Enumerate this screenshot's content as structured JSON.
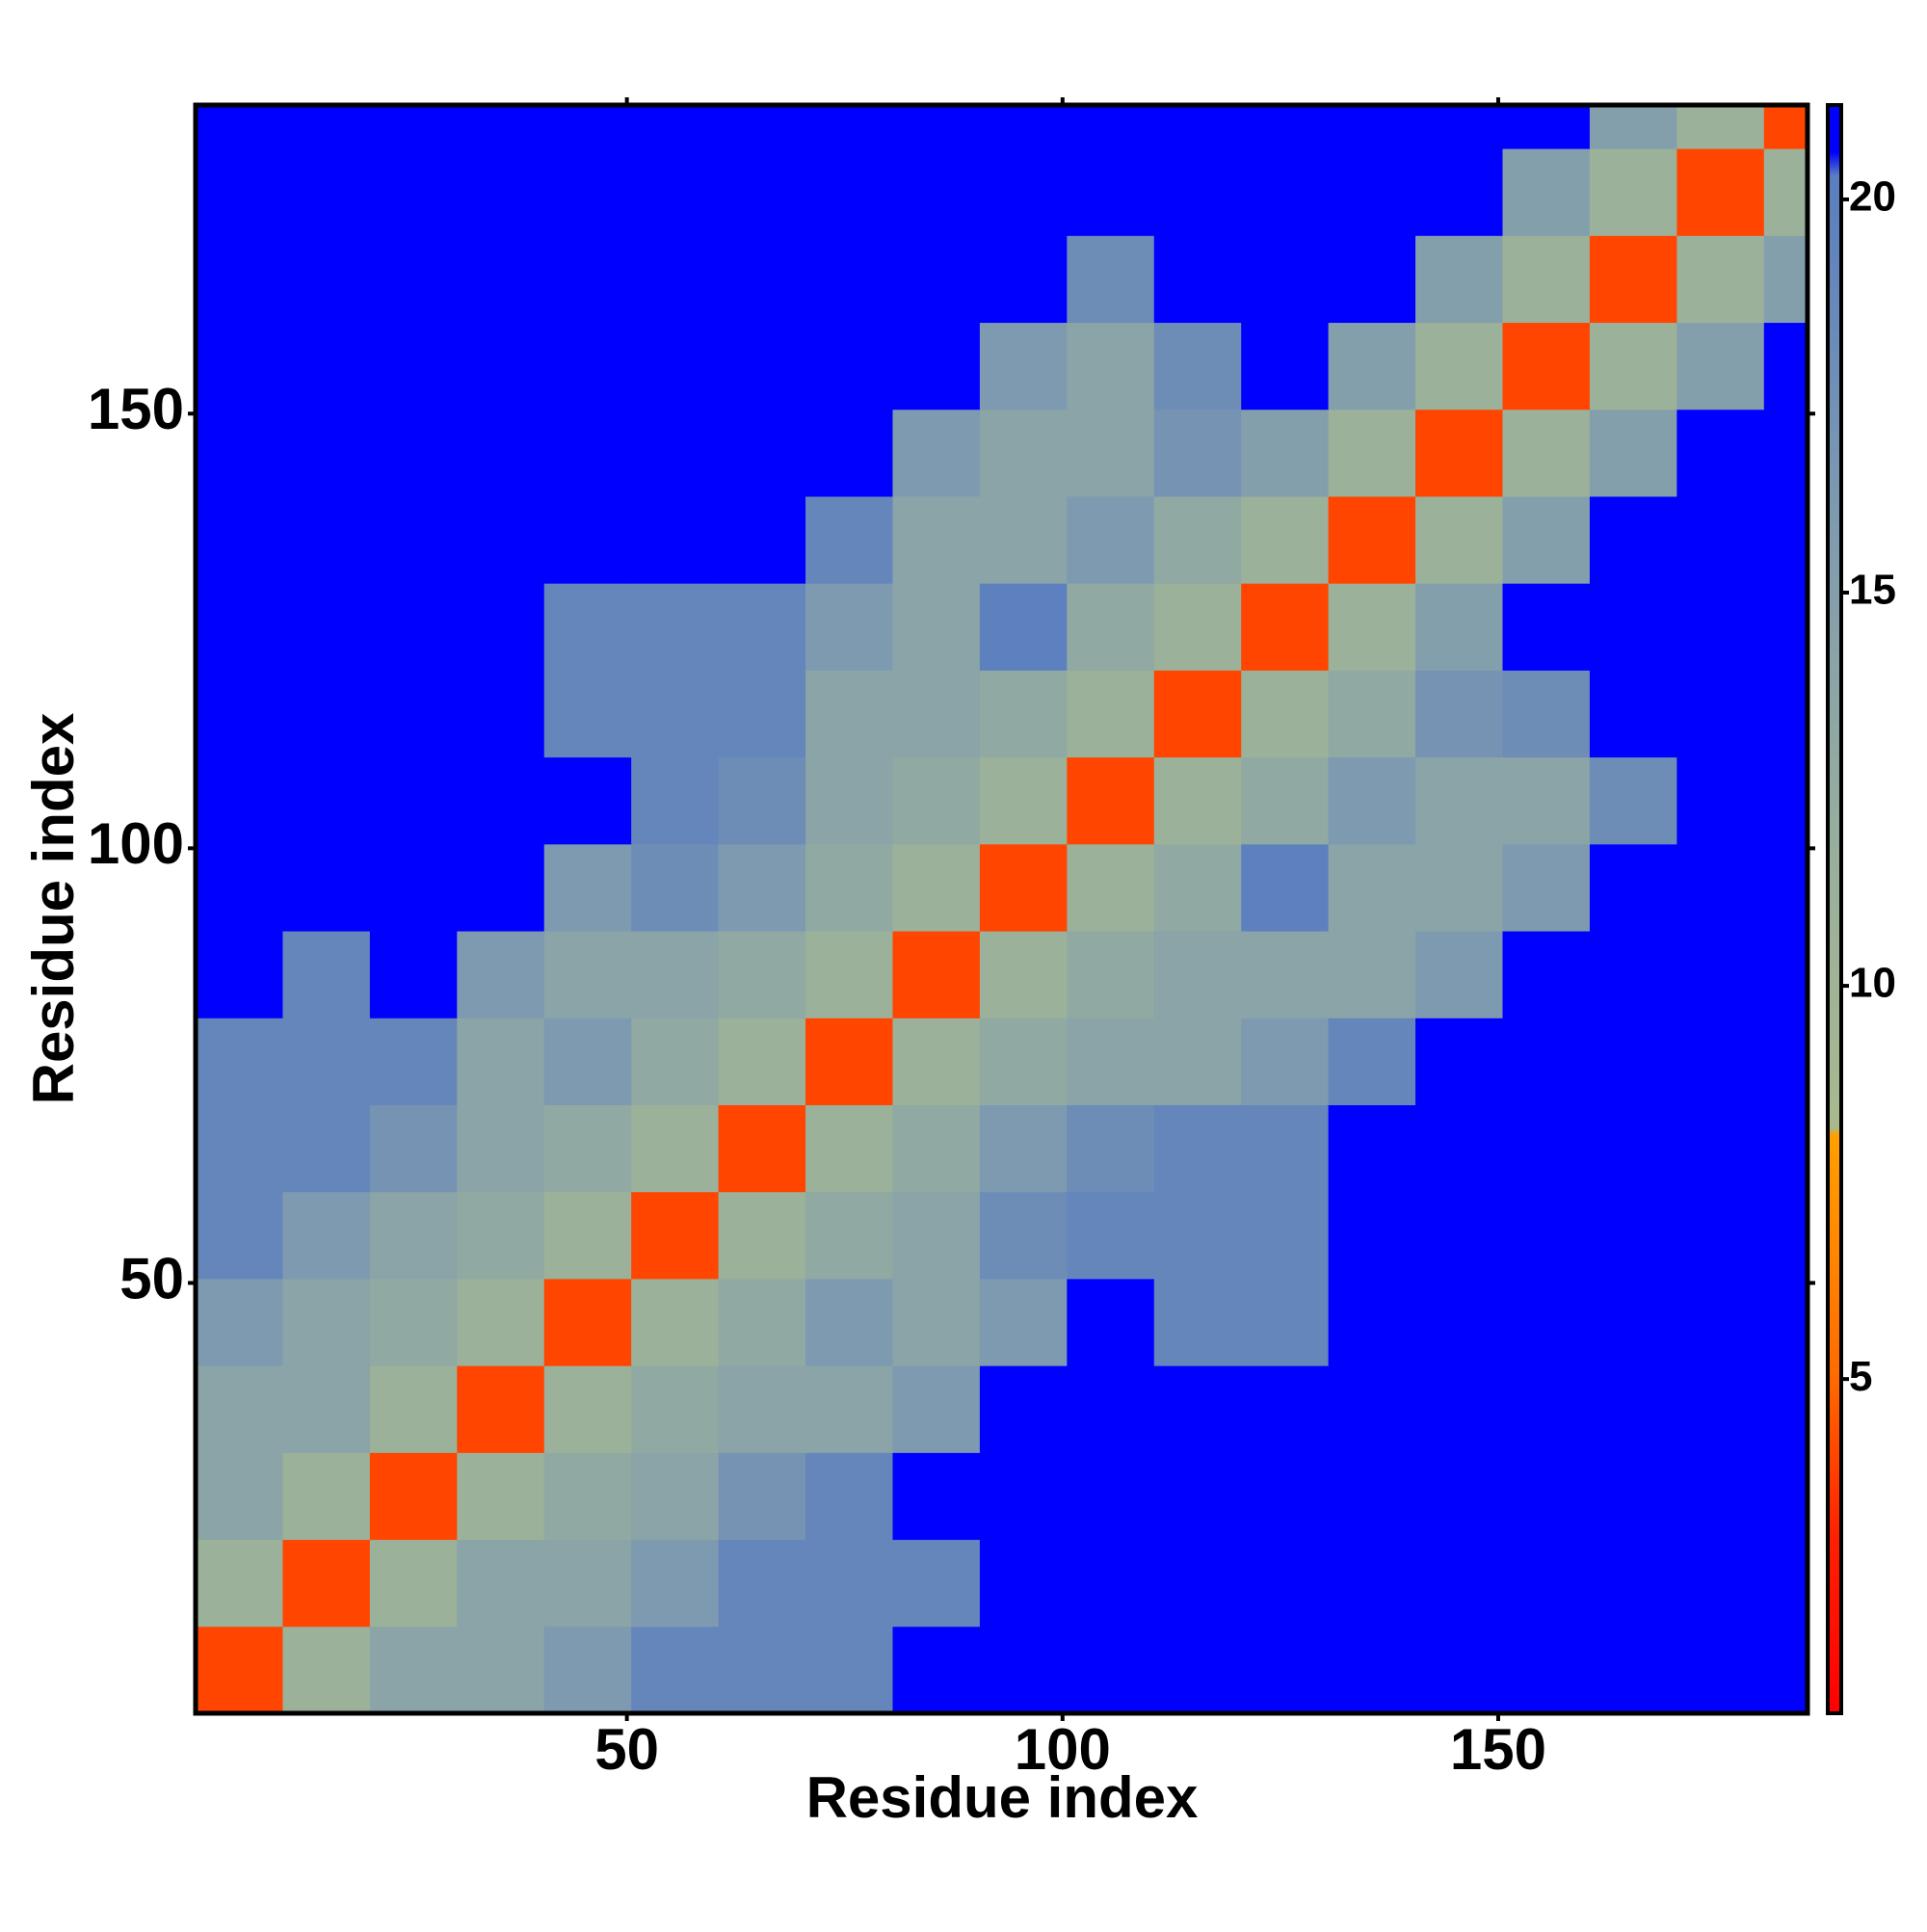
{
  "chart_data": {
    "type": "heatmap",
    "x_label": "Residue index",
    "y_label": "Residue index",
    "x_edges": [
      0.5,
      10.5,
      20.5,
      30.5,
      40.5,
      50.5,
      60.5,
      70.5,
      80.5,
      90.5,
      100.5,
      110.5,
      120.5,
      130.5,
      140.5,
      150.5,
      160.5,
      170.5,
      180.5,
      185.5
    ],
    "y_edges": [
      0.5,
      10.5,
      20.5,
      30.5,
      40.5,
      50.5,
      60.5,
      70.5,
      80.5,
      90.5,
      100.5,
      110.5,
      120.5,
      130.5,
      140.5,
      150.5,
      160.5,
      170.5,
      180.5,
      185.5
    ],
    "z": [
      [
        4,
        11,
        14,
        14,
        16,
        19,
        19,
        19,
        21,
        21,
        21,
        21,
        21,
        21,
        21,
        21,
        21,
        21,
        21
      ],
      [
        11,
        4,
        11,
        14,
        14,
        16,
        19,
        19,
        19,
        21,
        21,
        21,
        21,
        21,
        21,
        21,
        21,
        21,
        21
      ],
      [
        14,
        11,
        4,
        11,
        13,
        14,
        17,
        19,
        21,
        21,
        21,
        21,
        21,
        21,
        21,
        21,
        21,
        21,
        21
      ],
      [
        14,
        14,
        11,
        4,
        11,
        13,
        14,
        14,
        16,
        21,
        21,
        21,
        21,
        21,
        21,
        21,
        21,
        21,
        21
      ],
      [
        16,
        14,
        13,
        11,
        4,
        11,
        13,
        16,
        14,
        16,
        21,
        19,
        19,
        21,
        21,
        21,
        21,
        21,
        21
      ],
      [
        19,
        16,
        14,
        13,
        11,
        4,
        11,
        13,
        14,
        18,
        19,
        19,
        19,
        21,
        21,
        21,
        21,
        21,
        21
      ],
      [
        19,
        19,
        17,
        14,
        13,
        11,
        4,
        11,
        13,
        16,
        18,
        19,
        19,
        21,
        21,
        21,
        21,
        21,
        21
      ],
      [
        19,
        19,
        19,
        14,
        16,
        13,
        11,
        4,
        11,
        13,
        14,
        14,
        16,
        19,
        21,
        21,
        21,
        21,
        21
      ],
      [
        21,
        19,
        21,
        16,
        14,
        14,
        13,
        11,
        4,
        11,
        13,
        14,
        14,
        14,
        16,
        21,
        21,
        21,
        21
      ],
      [
        21,
        21,
        21,
        21,
        16,
        18,
        16,
        13,
        11,
        4,
        11,
        13,
        20,
        14,
        14,
        16,
        21,
        21,
        21
      ],
      [
        21,
        21,
        21,
        21,
        21,
        19,
        18,
        14,
        13,
        11,
        4,
        11,
        13,
        16,
        14,
        14,
        18,
        21,
        21
      ],
      [
        21,
        21,
        21,
        21,
        19,
        19,
        19,
        14,
        14,
        13,
        11,
        4,
        11,
        13,
        17,
        18,
        21,
        21,
        21
      ],
      [
        21,
        21,
        21,
        21,
        19,
        19,
        19,
        16,
        14,
        20,
        13,
        11,
        4,
        11,
        15,
        21,
        21,
        21,
        21
      ],
      [
        21,
        21,
        21,
        21,
        21,
        21,
        21,
        19,
        14,
        14,
        16,
        13,
        11,
        4,
        11,
        15,
        21,
        21,
        21
      ],
      [
        21,
        21,
        21,
        21,
        21,
        21,
        21,
        21,
        16,
        14,
        14,
        17,
        15,
        11,
        4,
        11,
        15,
        21,
        21
      ],
      [
        21,
        21,
        21,
        21,
        21,
        21,
        21,
        21,
        21,
        16,
        14,
        18,
        21,
        15,
        11,
        4,
        11,
        15,
        21
      ],
      [
        21,
        21,
        21,
        21,
        21,
        21,
        21,
        21,
        21,
        21,
        18,
        21,
        21,
        21,
        15,
        11,
        4,
        11,
        15
      ],
      [
        21,
        21,
        21,
        21,
        21,
        21,
        21,
        21,
        21,
        21,
        21,
        21,
        21,
        21,
        21,
        15,
        11,
        4,
        11
      ],
      [
        21,
        21,
        21,
        21,
        21,
        21,
        21,
        21,
        21,
        21,
        21,
        21,
        21,
        21,
        21,
        21,
        15,
        11,
        4
      ]
    ],
    "xlim": [
      0.5,
      185.5
    ],
    "ylim": [
      0.5,
      185.5
    ],
    "xticks": [
      50,
      100,
      150
    ],
    "yticks": [
      50,
      100,
      150
    ],
    "colorbar": {
      "lim": [
        0.75,
        21.2
      ],
      "ticks": [
        5,
        10,
        15,
        20
      ],
      "colorscale": [
        [
          0.75,
          "#ff0000"
        ],
        [
          3,
          "#ff2000"
        ],
        [
          5,
          "#ff6a00"
        ],
        [
          8.1,
          "#ffa000"
        ],
        [
          8.2,
          "#a9b98e"
        ],
        [
          12,
          "#96ae9e"
        ],
        [
          16,
          "#7e9ab0"
        ],
        [
          20.3,
          "#5a7ec0"
        ],
        [
          20.6,
          "#0000ff"
        ],
        [
          21.2,
          "#0000ff"
        ]
      ]
    }
  }
}
